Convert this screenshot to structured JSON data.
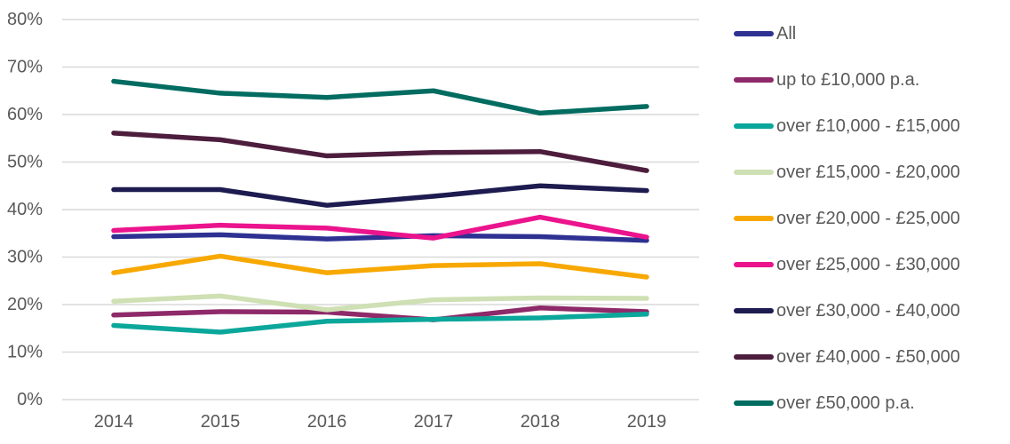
{
  "chart_data": {
    "type": "line",
    "title": "",
    "xlabel": "",
    "ylabel": "",
    "x": [
      "2014",
      "2015",
      "2016",
      "2017",
      "2018",
      "2019"
    ],
    "ylim": [
      0,
      80
    ],
    "yticks": [
      0,
      10,
      20,
      30,
      40,
      50,
      60,
      70,
      80
    ],
    "ytick_suffix": "%",
    "grid": "horizontal",
    "legend_position": "right",
    "series": [
      {
        "name": "All",
        "color": "#2E3192",
        "values": [
          34.3,
          34.7,
          33.8,
          34.5,
          34.3,
          33.5
        ]
      },
      {
        "name": "up to £10,000 p.a.",
        "color": "#8E2A69",
        "values": [
          17.8,
          18.5,
          18.4,
          16.8,
          19.3,
          18.5
        ]
      },
      {
        "name": "over £10,000 - £15,000",
        "color": "#0BA79B",
        "values": [
          15.6,
          14.2,
          16.5,
          16.9,
          17.2,
          18.0
        ]
      },
      {
        "name": "over £15,000 - £20,000",
        "color": "#CFE0B4",
        "values": [
          20.7,
          21.8,
          18.9,
          21.0,
          21.4,
          21.3
        ]
      },
      {
        "name": "over £20,000 - £25,000",
        "color": "#F7A801",
        "values": [
          26.7,
          30.2,
          26.7,
          28.2,
          28.6,
          25.8
        ]
      },
      {
        "name": "over £25,000 - £30,000",
        "color": "#EB148D",
        "values": [
          35.6,
          36.7,
          36.1,
          34.0,
          38.4,
          34.2
        ]
      },
      {
        "name": "over £30,000 - £40,000",
        "color": "#1D1B4F",
        "values": [
          44.2,
          44.2,
          40.9,
          42.8,
          45.0,
          44.0
        ]
      },
      {
        "name": "over £40,000 - £50,000",
        "color": "#4D1D3D",
        "values": [
          56.1,
          54.7,
          51.3,
          52.0,
          52.2,
          48.2
        ]
      },
      {
        "name": "over £50,000 p.a.",
        "color": "#026C61",
        "values": [
          67.0,
          64.5,
          63.6,
          65.0,
          60.3,
          61.7
        ]
      }
    ]
  },
  "colors": {
    "axis_text": "#595959",
    "gridline": "#D9D9D9",
    "background": "#FFFFFF"
  }
}
